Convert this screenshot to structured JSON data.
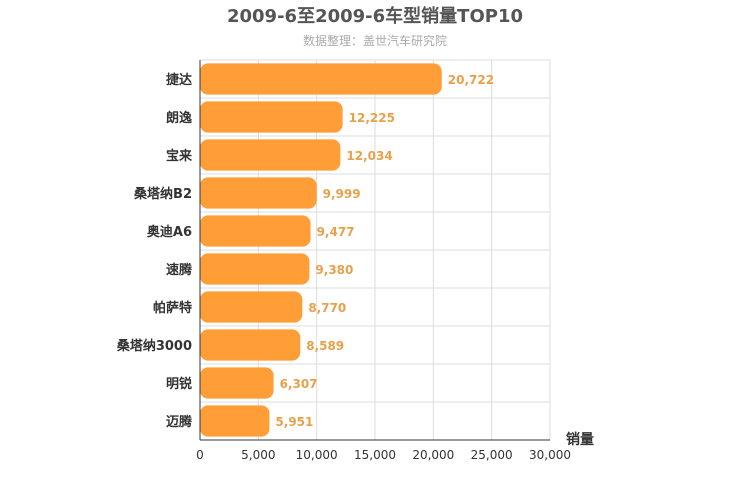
{
  "chart_data": {
    "type": "bar",
    "orientation": "horizontal",
    "title": "2009-6至2009-6车型销量TOP10",
    "subtitle": "数据整理：盖世汽车研究院",
    "xlabel": "销量",
    "ylabel": "",
    "categories": [
      "捷达",
      "朗逸",
      "宝来",
      "桑塔纳B2",
      "奥迪A6",
      "速腾",
      "帕萨特",
      "桑塔纳3000",
      "明锐",
      "迈腾"
    ],
    "values": [
      20722,
      12225,
      12034,
      9999,
      9477,
      9380,
      8770,
      8589,
      6307,
      5951
    ],
    "value_labels": [
      "20,722",
      "12,225",
      "12,034",
      "9,999",
      "9,477",
      "9,380",
      "8,770",
      "8,589",
      "6,307",
      "5,951"
    ],
    "xlim": [
      0,
      30000
    ],
    "xticks": [
      0,
      5000,
      10000,
      15000,
      20000,
      25000,
      30000
    ],
    "xtick_labels": [
      "0",
      "5,000",
      "10,000",
      "15,000",
      "20,000",
      "25,000",
      "30,000"
    ],
    "grid": true,
    "legend": "none",
    "colors": {
      "bar": "#ff9d36",
      "value_label": "#e8a14b",
      "title": "#555555",
      "subtitle": "#aaaaaa",
      "grid": "#dddddd"
    }
  }
}
